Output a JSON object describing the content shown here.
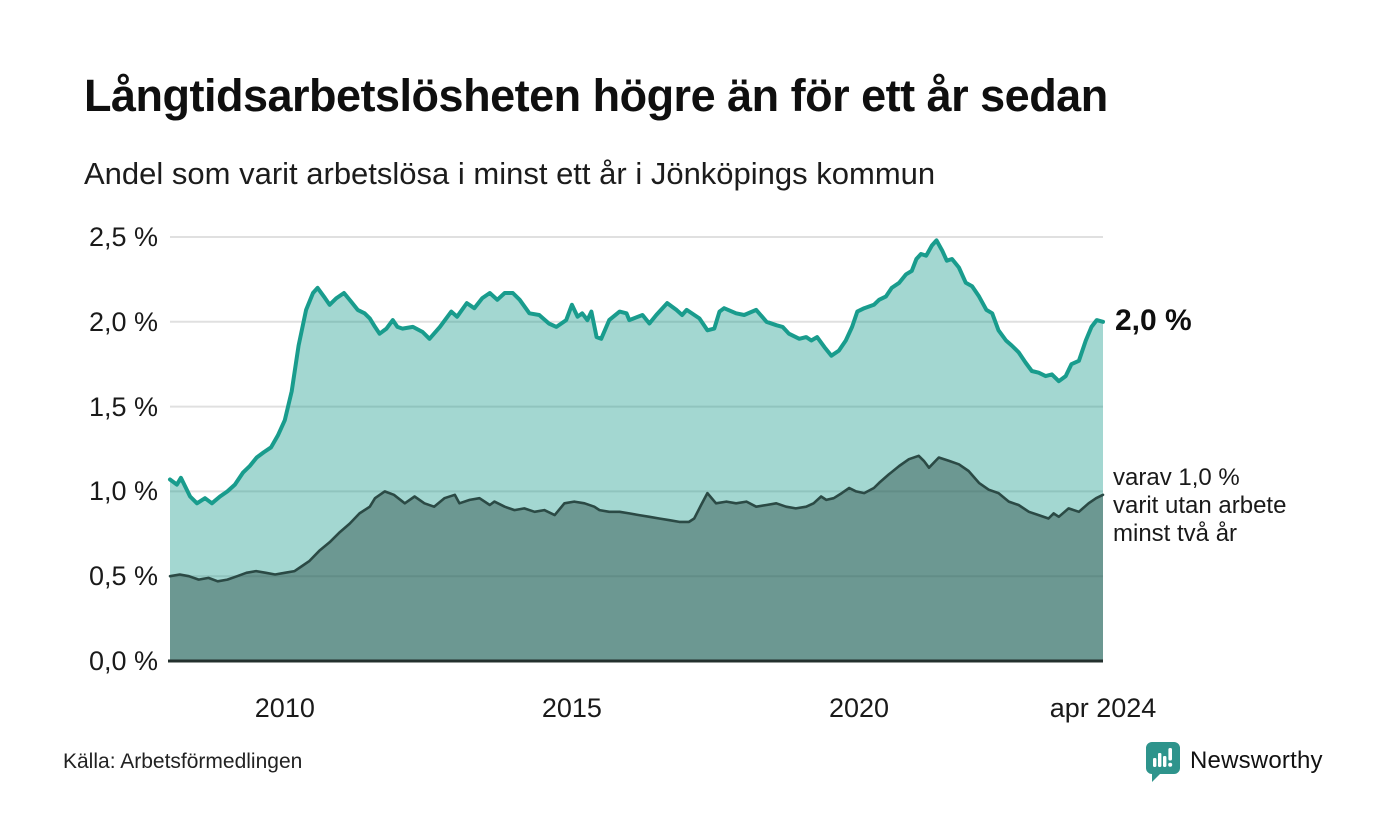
{
  "header": {
    "title": "Långtidsarbetslösheten högre än för ett år sedan",
    "subtitle": "Andel som varit arbetslösa i minst ett år i Jönköpings kommun"
  },
  "footer": {
    "source": "Källa: Arbetsförmedlingen",
    "logo_text": "Newsworthy"
  },
  "colors": {
    "accent_line": "#199c8d",
    "accent_fill": "rgba(24,154,139,0.40)",
    "dark_line": "#2b4a45",
    "dark_fill": "rgba(43,75,69,0.45)",
    "grid": "#e0e0e0",
    "axis": "#24302e",
    "text": "#1a1a1a",
    "brand_teal": "#2e948c"
  },
  "chart_data": {
    "type": "area",
    "title": "Långtidsarbetslösheten högre än för ett år sedan",
    "subtitle": "Andel som varit arbetslösa i minst ett år i Jönköpings kommun",
    "unit": "%",
    "grid": true,
    "legend_position": "right-annotations",
    "xlim": [
      2008,
      2024.25
    ],
    "ylim": [
      0,
      2.5
    ],
    "yticks": [
      {
        "value": 0.0,
        "label": "0,0 %"
      },
      {
        "value": 0.5,
        "label": "0,5 %"
      },
      {
        "value": 1.0,
        "label": "1,0 %"
      },
      {
        "value": 1.5,
        "label": "1,5 %"
      },
      {
        "value": 2.0,
        "label": "2,0 %"
      },
      {
        "value": 2.5,
        "label": "2,5 %"
      }
    ],
    "xticks": [
      {
        "value": 2010,
        "label": "2010"
      },
      {
        "value": 2015,
        "label": "2015"
      },
      {
        "value": 2020,
        "label": "2020"
      },
      {
        "value": 2024.25,
        "label": "apr 2024"
      }
    ],
    "annotations": {
      "end_value_label": "2,0 %",
      "end_value": 2.0,
      "secondary_label_lines": [
        "varav 1,0 %",
        "varit utan arbete",
        "minst två år"
      ],
      "secondary_value": 1.0
    },
    "series": [
      {
        "name": "Andel arbetslösa minst ett år",
        "points": [
          [
            2008.0,
            1.07
          ],
          [
            2008.12,
            1.04
          ],
          [
            2008.19,
            1.08
          ],
          [
            2008.35,
            0.97
          ],
          [
            2008.47,
            0.93
          ],
          [
            2008.61,
            0.96
          ],
          [
            2008.73,
            0.93
          ],
          [
            2008.87,
            0.97
          ],
          [
            2009.0,
            1.0
          ],
          [
            2009.13,
            1.04
          ],
          [
            2009.27,
            1.11
          ],
          [
            2009.39,
            1.15
          ],
          [
            2009.51,
            1.2
          ],
          [
            2009.63,
            1.23
          ],
          [
            2009.76,
            1.26
          ],
          [
            2009.88,
            1.33
          ],
          [
            2010.0,
            1.42
          ],
          [
            2010.12,
            1.59
          ],
          [
            2010.24,
            1.86
          ],
          [
            2010.37,
            2.07
          ],
          [
            2010.49,
            2.17
          ],
          [
            2010.57,
            2.2
          ],
          [
            2010.7,
            2.14
          ],
          [
            2010.78,
            2.1
          ],
          [
            2010.9,
            2.14
          ],
          [
            2011.03,
            2.17
          ],
          [
            2011.15,
            2.12
          ],
          [
            2011.27,
            2.07
          ],
          [
            2011.39,
            2.05
          ],
          [
            2011.48,
            2.02
          ],
          [
            2011.57,
            1.97
          ],
          [
            2011.65,
            1.93
          ],
          [
            2011.77,
            1.96
          ],
          [
            2011.88,
            2.01
          ],
          [
            2011.96,
            1.97
          ],
          [
            2012.05,
            1.96
          ],
          [
            2012.23,
            1.97
          ],
          [
            2012.4,
            1.94
          ],
          [
            2012.52,
            1.9
          ],
          [
            2012.7,
            1.97
          ],
          [
            2012.9,
            2.06
          ],
          [
            2013.0,
            2.03
          ],
          [
            2013.17,
            2.11
          ],
          [
            2013.3,
            2.08
          ],
          [
            2013.44,
            2.14
          ],
          [
            2013.57,
            2.17
          ],
          [
            2013.7,
            2.13
          ],
          [
            2013.83,
            2.17
          ],
          [
            2013.97,
            2.17
          ],
          [
            2014.09,
            2.13
          ],
          [
            2014.26,
            2.05
          ],
          [
            2014.43,
            2.04
          ],
          [
            2014.6,
            1.99
          ],
          [
            2014.73,
            1.97
          ],
          [
            2014.9,
            2.01
          ],
          [
            2015.0,
            2.1
          ],
          [
            2015.1,
            2.03
          ],
          [
            2015.18,
            2.05
          ],
          [
            2015.27,
            2.01
          ],
          [
            2015.34,
            2.06
          ],
          [
            2015.43,
            1.91
          ],
          [
            2015.51,
            1.9
          ],
          [
            2015.65,
            2.01
          ],
          [
            2015.83,
            2.06
          ],
          [
            2015.95,
            2.05
          ],
          [
            2016.0,
            2.01
          ],
          [
            2016.23,
            2.04
          ],
          [
            2016.35,
            1.99
          ],
          [
            2016.47,
            2.04
          ],
          [
            2016.66,
            2.11
          ],
          [
            2016.82,
            2.07
          ],
          [
            2016.92,
            2.04
          ],
          [
            2017.0,
            2.07
          ],
          [
            2017.22,
            2.02
          ],
          [
            2017.36,
            1.95
          ],
          [
            2017.48,
            1.96
          ],
          [
            2017.57,
            2.06
          ],
          [
            2017.65,
            2.08
          ],
          [
            2017.86,
            2.05
          ],
          [
            2018.0,
            2.04
          ],
          [
            2018.21,
            2.07
          ],
          [
            2018.39,
            2.0
          ],
          [
            2018.56,
            1.98
          ],
          [
            2018.67,
            1.97
          ],
          [
            2018.78,
            1.93
          ],
          [
            2018.96,
            1.9
          ],
          [
            2019.08,
            1.91
          ],
          [
            2019.17,
            1.89
          ],
          [
            2019.27,
            1.91
          ],
          [
            2019.4,
            1.85
          ],
          [
            2019.52,
            1.8
          ],
          [
            2019.65,
            1.83
          ],
          [
            2019.77,
            1.89
          ],
          [
            2019.88,
            1.97
          ],
          [
            2019.97,
            2.06
          ],
          [
            2020.09,
            2.08
          ],
          [
            2020.26,
            2.1
          ],
          [
            2020.35,
            2.13
          ],
          [
            2020.47,
            2.15
          ],
          [
            2020.57,
            2.2
          ],
          [
            2020.7,
            2.23
          ],
          [
            2020.82,
            2.28
          ],
          [
            2020.92,
            2.3
          ],
          [
            2021.0,
            2.37
          ],
          [
            2021.08,
            2.4
          ],
          [
            2021.17,
            2.39
          ],
          [
            2021.27,
            2.45
          ],
          [
            2021.35,
            2.48
          ],
          [
            2021.45,
            2.42
          ],
          [
            2021.53,
            2.36
          ],
          [
            2021.62,
            2.37
          ],
          [
            2021.74,
            2.32
          ],
          [
            2021.86,
            2.23
          ],
          [
            2021.97,
            2.21
          ],
          [
            2022.09,
            2.15
          ],
          [
            2022.22,
            2.07
          ],
          [
            2022.32,
            2.05
          ],
          [
            2022.43,
            1.95
          ],
          [
            2022.56,
            1.89
          ],
          [
            2022.66,
            1.86
          ],
          [
            2022.78,
            1.82
          ],
          [
            2022.9,
            1.76
          ],
          [
            2023.01,
            1.71
          ],
          [
            2023.13,
            1.7
          ],
          [
            2023.25,
            1.68
          ],
          [
            2023.36,
            1.69
          ],
          [
            2023.48,
            1.65
          ],
          [
            2023.6,
            1.68
          ],
          [
            2023.7,
            1.75
          ],
          [
            2023.83,
            1.77
          ],
          [
            2023.95,
            1.89
          ],
          [
            2024.05,
            1.97
          ],
          [
            2024.14,
            2.01
          ],
          [
            2024.25,
            2.0
          ]
        ]
      },
      {
        "name": "varav arbetslösa minst två år",
        "points": [
          [
            2008.0,
            0.5
          ],
          [
            2008.17,
            0.51
          ],
          [
            2008.33,
            0.5
          ],
          [
            2008.5,
            0.48
          ],
          [
            2008.67,
            0.49
          ],
          [
            2008.83,
            0.47
          ],
          [
            2009.0,
            0.48
          ],
          [
            2009.17,
            0.5
          ],
          [
            2009.33,
            0.52
          ],
          [
            2009.5,
            0.53
          ],
          [
            2009.67,
            0.52
          ],
          [
            2009.83,
            0.51
          ],
          [
            2010.0,
            0.52
          ],
          [
            2010.17,
            0.53
          ],
          [
            2010.3,
            0.56
          ],
          [
            2010.43,
            0.59
          ],
          [
            2010.6,
            0.65
          ],
          [
            2010.78,
            0.7
          ],
          [
            2010.96,
            0.76
          ],
          [
            2011.13,
            0.81
          ],
          [
            2011.3,
            0.87
          ],
          [
            2011.48,
            0.91
          ],
          [
            2011.57,
            0.96
          ],
          [
            2011.74,
            1.0
          ],
          [
            2011.9,
            0.98
          ],
          [
            2012.09,
            0.93
          ],
          [
            2012.26,
            0.97
          ],
          [
            2012.43,
            0.93
          ],
          [
            2012.6,
            0.91
          ],
          [
            2012.78,
            0.96
          ],
          [
            2012.96,
            0.98
          ],
          [
            2013.04,
            0.93
          ],
          [
            2013.22,
            0.95
          ],
          [
            2013.39,
            0.96
          ],
          [
            2013.57,
            0.92
          ],
          [
            2013.65,
            0.94
          ],
          [
            2013.83,
            0.91
          ],
          [
            2014.0,
            0.89
          ],
          [
            2014.17,
            0.9
          ],
          [
            2014.35,
            0.88
          ],
          [
            2014.52,
            0.89
          ],
          [
            2014.7,
            0.86
          ],
          [
            2014.87,
            0.93
          ],
          [
            2015.04,
            0.94
          ],
          [
            2015.22,
            0.93
          ],
          [
            2015.39,
            0.91
          ],
          [
            2015.48,
            0.89
          ],
          [
            2015.65,
            0.88
          ],
          [
            2015.83,
            0.88
          ],
          [
            2016.0,
            0.87
          ],
          [
            2016.17,
            0.86
          ],
          [
            2016.35,
            0.85
          ],
          [
            2016.52,
            0.84
          ],
          [
            2016.7,
            0.83
          ],
          [
            2016.87,
            0.82
          ],
          [
            2017.04,
            0.82
          ],
          [
            2017.13,
            0.84
          ],
          [
            2017.25,
            0.92
          ],
          [
            2017.36,
            0.99
          ],
          [
            2017.51,
            0.93
          ],
          [
            2017.69,
            0.94
          ],
          [
            2017.86,
            0.93
          ],
          [
            2018.04,
            0.94
          ],
          [
            2018.21,
            0.91
          ],
          [
            2018.39,
            0.92
          ],
          [
            2018.56,
            0.93
          ],
          [
            2018.73,
            0.91
          ],
          [
            2018.9,
            0.9
          ],
          [
            2019.08,
            0.91
          ],
          [
            2019.21,
            0.93
          ],
          [
            2019.34,
            0.97
          ],
          [
            2019.43,
            0.95
          ],
          [
            2019.56,
            0.96
          ],
          [
            2019.7,
            0.99
          ],
          [
            2019.83,
            1.02
          ],
          [
            2019.95,
            1.0
          ],
          [
            2020.09,
            0.99
          ],
          [
            2020.26,
            1.02
          ],
          [
            2020.35,
            1.05
          ],
          [
            2020.52,
            1.1
          ],
          [
            2020.7,
            1.15
          ],
          [
            2020.87,
            1.19
          ],
          [
            2021.04,
            1.21
          ],
          [
            2021.13,
            1.18
          ],
          [
            2021.22,
            1.14
          ],
          [
            2021.39,
            1.2
          ],
          [
            2021.57,
            1.18
          ],
          [
            2021.74,
            1.16
          ],
          [
            2021.91,
            1.12
          ],
          [
            2022.09,
            1.05
          ],
          [
            2022.26,
            1.01
          ],
          [
            2022.43,
            0.99
          ],
          [
            2022.61,
            0.94
          ],
          [
            2022.78,
            0.92
          ],
          [
            2022.96,
            0.88
          ],
          [
            2023.13,
            0.86
          ],
          [
            2023.3,
            0.84
          ],
          [
            2023.39,
            0.87
          ],
          [
            2023.48,
            0.85
          ],
          [
            2023.65,
            0.9
          ],
          [
            2023.83,
            0.88
          ],
          [
            2024.0,
            0.93
          ],
          [
            2024.13,
            0.96
          ],
          [
            2024.25,
            0.98
          ]
        ]
      }
    ]
  }
}
